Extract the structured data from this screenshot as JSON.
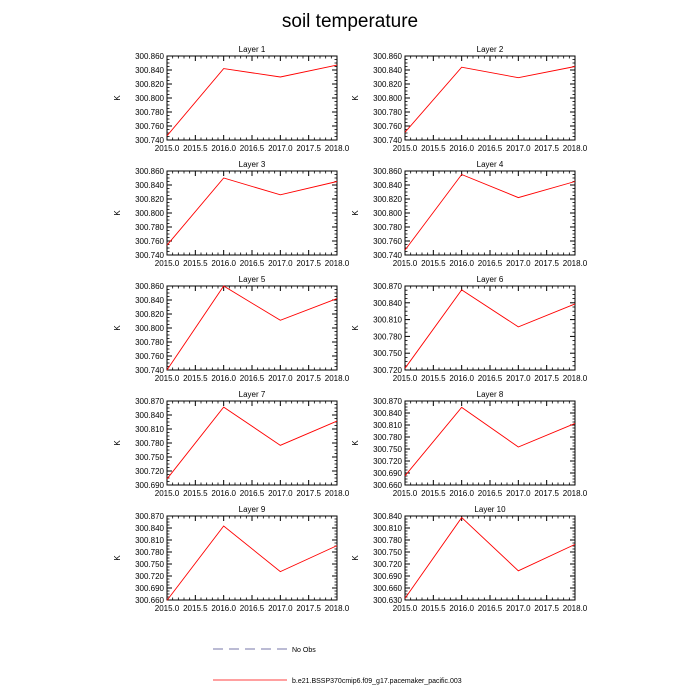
{
  "figure": {
    "title": "soil temperature"
  },
  "legend": {
    "entries": [
      {
        "label": "No Obs",
        "color": "#7777aa",
        "style": "dashed"
      },
      {
        "label": "b.e21.BSSP370cmip6.f09_g17.pacemaker_pacific.003",
        "color": "#ff0000",
        "style": "solid"
      }
    ]
  },
  "chart_data": [
    {
      "type": "line",
      "title": "Layer 1",
      "ylabel": "K",
      "x": [
        2015.0,
        2016.0,
        2017.0,
        2018.0
      ],
      "xlim": [
        2015.0,
        2018.0
      ],
      "xticks": [
        "2015.0",
        "2015.5",
        "2016.0",
        "2016.5",
        "2017.0",
        "2017.5",
        "2018.0"
      ],
      "ylim": [
        300.74,
        300.86
      ],
      "yticks": [
        "300.740",
        "300.760",
        "300.780",
        "300.800",
        "300.820",
        "300.840",
        "300.860"
      ],
      "series": [
        {
          "color": "#ff0000",
          "values": [
            300.746,
            300.842,
            300.83,
            300.847
          ]
        }
      ]
    },
    {
      "type": "line",
      "title": "Layer 2",
      "ylabel": "K",
      "x": [
        2015.0,
        2016.0,
        2017.0,
        2018.0
      ],
      "xlim": [
        2015.0,
        2018.0
      ],
      "xticks": [
        "2015.0",
        "2015.5",
        "2016.0",
        "2016.5",
        "2017.0",
        "2017.5",
        "2018.0"
      ],
      "ylim": [
        300.74,
        300.86
      ],
      "yticks": [
        "300.740",
        "300.760",
        "300.780",
        "300.800",
        "300.820",
        "300.840",
        "300.860"
      ],
      "series": [
        {
          "color": "#ff0000",
          "values": [
            300.751,
            300.844,
            300.829,
            300.845
          ]
        }
      ]
    },
    {
      "type": "line",
      "title": "Layer 3",
      "ylabel": "K",
      "x": [
        2015.0,
        2016.0,
        2017.0,
        2018.0
      ],
      "xlim": [
        2015.0,
        2018.0
      ],
      "xticks": [
        "2015.0",
        "2015.5",
        "2016.0",
        "2016.5",
        "2017.0",
        "2017.5",
        "2018.0"
      ],
      "ylim": [
        300.74,
        300.86
      ],
      "yticks": [
        "300.740",
        "300.760",
        "300.780",
        "300.800",
        "300.820",
        "300.840",
        "300.860"
      ],
      "series": [
        {
          "color": "#ff0000",
          "values": [
            300.754,
            300.85,
            300.826,
            300.845
          ]
        }
      ]
    },
    {
      "type": "line",
      "title": "Layer 4",
      "ylabel": "K",
      "x": [
        2015.0,
        2016.0,
        2017.0,
        2018.0
      ],
      "xlim": [
        2015.0,
        2018.0
      ],
      "xticks": [
        "2015.0",
        "2015.5",
        "2016.0",
        "2016.5",
        "2017.0",
        "2017.5",
        "2018.0"
      ],
      "ylim": [
        300.74,
        300.86
      ],
      "yticks": [
        "300.740",
        "300.760",
        "300.780",
        "300.800",
        "300.820",
        "300.840",
        "300.860"
      ],
      "series": [
        {
          "color": "#ff0000",
          "values": [
            300.747,
            300.855,
            300.822,
            300.845
          ]
        }
      ]
    },
    {
      "type": "line",
      "title": "Layer 5",
      "ylabel": "K",
      "x": [
        2015.0,
        2016.0,
        2017.0,
        2018.0
      ],
      "xlim": [
        2015.0,
        2018.0
      ],
      "xticks": [
        "2015.0",
        "2015.5",
        "2016.0",
        "2016.5",
        "2017.0",
        "2017.5",
        "2018.0"
      ],
      "ylim": [
        300.74,
        300.86
      ],
      "yticks": [
        "300.740",
        "300.760",
        "300.780",
        "300.800",
        "300.820",
        "300.840",
        "300.860"
      ],
      "series": [
        {
          "color": "#ff0000",
          "values": [
            300.74,
            300.86,
            300.811,
            300.842
          ]
        }
      ]
    },
    {
      "type": "line",
      "title": "Layer 6",
      "ylabel": "K",
      "x": [
        2015.0,
        2016.0,
        2017.0,
        2018.0
      ],
      "xlim": [
        2015.0,
        2018.0
      ],
      "xticks": [
        "2015.0",
        "2015.5",
        "2016.0",
        "2016.5",
        "2017.0",
        "2017.5",
        "2018.0"
      ],
      "ylim": [
        300.72,
        300.87
      ],
      "yticks": [
        "300.720",
        "300.750",
        "300.780",
        "300.810",
        "300.840",
        "300.870"
      ],
      "series": [
        {
          "color": "#ff0000",
          "values": [
            300.723,
            300.863,
            300.797,
            300.838
          ]
        }
      ]
    },
    {
      "type": "line",
      "title": "Layer 7",
      "ylabel": "K",
      "x": [
        2015.0,
        2016.0,
        2017.0,
        2018.0
      ],
      "xlim": [
        2015.0,
        2018.0
      ],
      "xticks": [
        "2015.0",
        "2015.5",
        "2016.0",
        "2016.5",
        "2017.0",
        "2017.5",
        "2018.0"
      ],
      "ylim": [
        300.69,
        300.87
      ],
      "yticks": [
        "300.690",
        "300.720",
        "300.750",
        "300.780",
        "300.810",
        "300.840",
        "300.870"
      ],
      "series": [
        {
          "color": "#ff0000",
          "values": [
            300.703,
            300.857,
            300.775,
            300.827
          ]
        }
      ]
    },
    {
      "type": "line",
      "title": "Layer 8",
      "ylabel": "K",
      "x": [
        2015.0,
        2016.0,
        2017.0,
        2018.0
      ],
      "xlim": [
        2015.0,
        2018.0
      ],
      "xticks": [
        "2015.0",
        "2015.5",
        "2016.0",
        "2016.5",
        "2017.0",
        "2017.5",
        "2018.0"
      ],
      "ylim": [
        300.66,
        300.87
      ],
      "yticks": [
        "300.660",
        "300.690",
        "300.720",
        "300.750",
        "300.780",
        "300.810",
        "300.840",
        "300.870"
      ],
      "series": [
        {
          "color": "#ff0000",
          "values": [
            300.683,
            300.854,
            300.755,
            300.814
          ]
        }
      ]
    },
    {
      "type": "line",
      "title": "Layer 9",
      "ylabel": "K",
      "x": [
        2015.0,
        2016.0,
        2017.0,
        2018.0
      ],
      "xlim": [
        2015.0,
        2018.0
      ],
      "xticks": [
        "2015.0",
        "2015.5",
        "2016.0",
        "2016.5",
        "2017.0",
        "2017.5",
        "2018.0"
      ],
      "ylim": [
        300.66,
        300.87
      ],
      "yticks": [
        "300.660",
        "300.690",
        "300.720",
        "300.750",
        "300.780",
        "300.810",
        "300.840",
        "300.870"
      ],
      "series": [
        {
          "color": "#ff0000",
          "values": [
            300.659,
            300.845,
            300.731,
            300.796
          ]
        }
      ]
    },
    {
      "type": "line",
      "title": "Layer 10",
      "ylabel": "K",
      "x": [
        2015.0,
        2016.0,
        2017.0,
        2018.0
      ],
      "xlim": [
        2015.0,
        2018.0
      ],
      "xticks": [
        "2015.0",
        "2015.5",
        "2016.0",
        "2016.5",
        "2017.0",
        "2017.5",
        "2018.0"
      ],
      "ylim": [
        300.63,
        300.84
      ],
      "yticks": [
        "300.630",
        "300.660",
        "300.690",
        "300.720",
        "300.750",
        "300.780",
        "300.810",
        "300.840"
      ],
      "series": [
        {
          "color": "#ff0000",
          "values": [
            300.634,
            300.836,
            300.703,
            300.769
          ]
        }
      ]
    }
  ]
}
